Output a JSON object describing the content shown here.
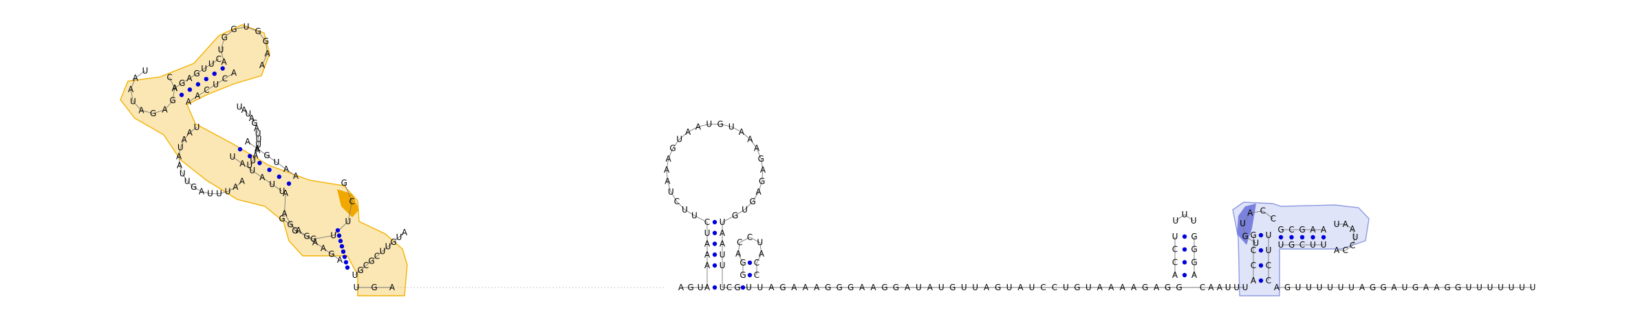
{
  "diagram": {
    "type": "rna-secondary-structure",
    "colors": {
      "base_pair": "#0000dd",
      "highlight_orange": "#f3b100",
      "highlight_orange_fill": "#fbe7b4",
      "highlight_orange_dark": "#f0a800",
      "highlight_blue": "#8e9be0",
      "highlight_blue_fill": "#dfe4f8",
      "highlight_blue_dark": "#7a82dd"
    },
    "baseline_left": "UGA",
    "baseline_right": "GUUAGAAAGGGAAGGAUAUGUUAGUAUCCUGUAAAAGAGG",
    "baseline_tail": "AGUUUUUUAGGAUGAAGGUUUUUUU",
    "central_hairpin": {
      "stem_5p": "CUAAA",
      "stem_3p": "UAAUU",
      "loop": "UUCUAAAGUAAUGUAAAGAGAGUG",
      "linker": "AGU",
      "small_hairpin_5p": "GG",
      "small_hairpin_3p": "CC",
      "small_hairpin_loop": "ACCUA"
    },
    "right_small_hairpin": {
      "stem_5p": "UCCA",
      "stem_3p": "AGGGU",
      "loop": "UUU"
    },
    "right_structure": {
      "spacer": "CAAUUU",
      "stem_5p": "GCCA",
      "stem_3p": "CCUU",
      "inner_5p": "GCGAA",
      "inner_3p": "UUCGU",
      "loop": "UAAUCCA",
      "left_loop": "UGUACC"
    },
    "left_structure": {
      "arm_outer": "UGCGCUUGUA",
      "arm_inner": "AGAAGAGG",
      "helix_a_left": "UUAUAU",
      "helix_a_right": "AAUGAA",
      "middle_left": "AAUUUAGUUAAUAAU",
      "middle_right": "UAUAGAUUUAAUU",
      "upper_left": "AGAGUUC",
      "upper_right": "AACUCA",
      "top_loop": "AUGGUGGAA",
      "left_bulge": "CAGAGAUAAU"
    }
  }
}
